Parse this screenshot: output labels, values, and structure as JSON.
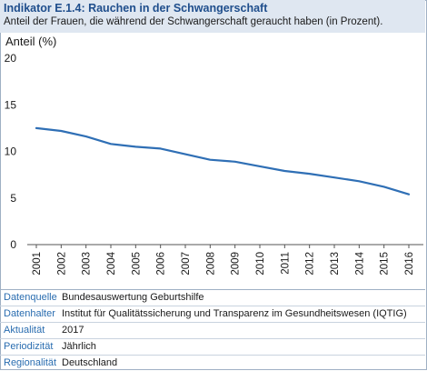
{
  "header": {
    "title": "Indikator E.1.4: Rauchen in der Schwangerschaft",
    "subtitle": "Anteil der Frauen, die während der Schwangerschaft geraucht haben (in Prozent)."
  },
  "chart_data": {
    "type": "line",
    "ylabel": "Anteil (%)",
    "ylim": [
      0,
      20
    ],
    "yticks": [
      0,
      5,
      10,
      15,
      20
    ],
    "grid": false,
    "line_color": "#2f6fb5",
    "x": [
      "2001",
      "2002",
      "2003",
      "2004",
      "2005",
      "2006",
      "2007",
      "2008",
      "2009",
      "2010",
      "2011",
      "2012",
      "2013",
      "2014",
      "2015",
      "2016"
    ],
    "series": [
      {
        "values": [
          12.5,
          12.2,
          11.6,
          10.8,
          10.5,
          10.3,
          9.7,
          9.1,
          8.9,
          8.4,
          7.9,
          7.6,
          7.2,
          6.8,
          6.2,
          5.4
        ]
      }
    ]
  },
  "meta": [
    {
      "key": "Datenquelle",
      "value": "Bundesauswertung Geburtshilfe"
    },
    {
      "key": "Datenhalter",
      "value": "Institut für Qualitätssicherung und Transparenz im Gesundheitswesen (IQTIG)"
    },
    {
      "key": "Aktualität",
      "value": "2017"
    },
    {
      "key": "Periodizität",
      "value": "Jährlich"
    },
    {
      "key": "Regionalität",
      "value": "Deutschland"
    }
  ]
}
